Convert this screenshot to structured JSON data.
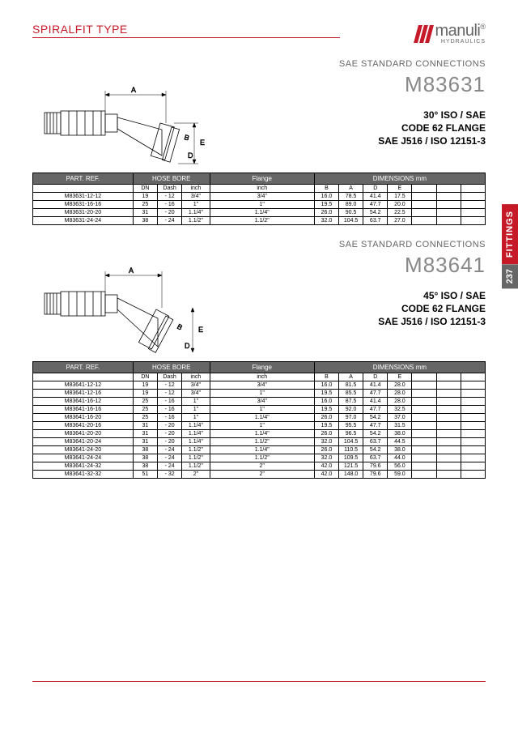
{
  "header": {
    "title": "SPIRALFIT TYPE",
    "logo_main": "manuli",
    "logo_sub": "HYDRAULICS"
  },
  "sidebar": {
    "label": "FITTINGS",
    "page": "237"
  },
  "section1": {
    "sae_conn": "SAE STANDARD CONNECTIONS",
    "code": "M83631",
    "desc1": "30° ISO / SAE",
    "desc2": "CODE 62 FLANGE",
    "desc3": "SAE J516 / ISO 12151-3",
    "table": {
      "headers": {
        "part_ref": "PART. REF.",
        "hose_bore": "HOSE BORE",
        "flange": "Flange",
        "dimensions": "DIMENSIONS mm"
      },
      "sub": {
        "dn": "DN",
        "dash": "Dash",
        "inch1": "inch",
        "inch2": "inch",
        "b": "B",
        "a": "A",
        "d": "D",
        "e": "E"
      },
      "rows": [
        {
          "ref": "M83631-12-12",
          "dn": "19",
          "dash": "- 12",
          "inch1": "3/4\"",
          "inch2": "3/4\"",
          "b": "16.0",
          "a": "78.5",
          "d": "41.4",
          "e": "17.5"
        },
        {
          "ref": "M83631-16-16",
          "dn": "25",
          "dash": "- 16",
          "inch1": "1\"",
          "inch2": "1\"",
          "b": "19.5",
          "a": "89.0",
          "d": "47.7",
          "e": "20.0"
        },
        {
          "ref": "M83631-20-20",
          "dn": "31",
          "dash": "- 20",
          "inch1": "1.1/4\"",
          "inch2": "1.1/4\"",
          "b": "26.0",
          "a": "90.5",
          "d": "54.2",
          "e": "22.5"
        },
        {
          "ref": "M83631-24-24",
          "dn": "38",
          "dash": "- 24",
          "inch1": "1.1/2\"",
          "inch2": "1.1/2\"",
          "b": "32.0",
          "a": "104.5",
          "d": "63.7",
          "e": "27.0"
        }
      ]
    }
  },
  "section2": {
    "sae_conn": "SAE STANDARD CONNECTIONS",
    "code": "M83641",
    "desc1": "45° ISO / SAE",
    "desc2": "CODE 62 FLANGE",
    "desc3": "SAE J516 / ISO 12151-3",
    "table": {
      "headers": {
        "part_ref": "PART. REF.",
        "hose_bore": "HOSE BORE",
        "flange": "Flange",
        "dimensions": "DIMENSIONS mm"
      },
      "sub": {
        "dn": "DN",
        "dash": "Dash",
        "inch1": "inch",
        "inch2": "inch",
        "b": "B",
        "a": "A",
        "d": "D",
        "e": "E"
      },
      "rows": [
        {
          "ref": "M83641-12-12",
          "dn": "19",
          "dash": "- 12",
          "inch1": "3/4\"",
          "inch2": "3/4\"",
          "b": "16.0",
          "a": "81.5",
          "d": "41.4",
          "e": "28.0"
        },
        {
          "ref": "M83641-12-16",
          "dn": "19",
          "dash": "- 12",
          "inch1": "3/4\"",
          "inch2": "1\"",
          "b": "19.5",
          "a": "85.5",
          "d": "47.7",
          "e": "28.0"
        },
        {
          "ref": "M83641-16-12",
          "dn": "25",
          "dash": "- 16",
          "inch1": "1\"",
          "inch2": "3/4\"",
          "b": "16.0",
          "a": "87.5",
          "d": "41.4",
          "e": "28.0"
        },
        {
          "ref": "M83641-16-16",
          "dn": "25",
          "dash": "- 16",
          "inch1": "1\"",
          "inch2": "1\"",
          "b": "19.5",
          "a": "92.0",
          "d": "47.7",
          "e": "32.5"
        },
        {
          "ref": "M83641-16-20",
          "dn": "25",
          "dash": "- 16",
          "inch1": "1\"",
          "inch2": "1.1/4\"",
          "b": "26.0",
          "a": "97.0",
          "d": "54.2",
          "e": "37.0"
        },
        {
          "ref": "M83641-20-16",
          "dn": "31",
          "dash": "- 20",
          "inch1": "1.1/4\"",
          "inch2": "1\"",
          "b": "19.5",
          "a": "95.5",
          "d": "47.7",
          "e": "31.5"
        },
        {
          "ref": "M83641-20-20",
          "dn": "31",
          "dash": "- 20",
          "inch1": "1.1/4\"",
          "inch2": "1.1/4\"",
          "b": "26.0",
          "a": "96.5",
          "d": "54.2",
          "e": "38.0"
        },
        {
          "ref": "M83641-20-24",
          "dn": "31",
          "dash": "- 20",
          "inch1": "1.1/4\"",
          "inch2": "1.1/2\"",
          "b": "32.0",
          "a": "104.5",
          "d": "63.7",
          "e": "44.5"
        },
        {
          "ref": "M83641-24-20",
          "dn": "38",
          "dash": "- 24",
          "inch1": "1.1/2\"",
          "inch2": "1.1/4\"",
          "b": "26.0",
          "a": "110.5",
          "d": "54.2",
          "e": "38.0"
        },
        {
          "ref": "M83641-24-24",
          "dn": "38",
          "dash": "- 24",
          "inch1": "1.1/2\"",
          "inch2": "1.1/2\"",
          "b": "32.0",
          "a": "109.5",
          "d": "63.7",
          "e": "44.0"
        },
        {
          "ref": "M83641-24-32",
          "dn": "38",
          "dash": "- 24",
          "inch1": "1.1/2\"",
          "inch2": "2\"",
          "b": "42.0",
          "a": "121.5",
          "d": "79.6",
          "e": "56.0"
        },
        {
          "ref": "M83641-32-32",
          "dn": "51",
          "dash": "- 32",
          "inch1": "2\"",
          "inch2": "2\"",
          "b": "42.0",
          "a": "148.0",
          "d": "79.6",
          "e": "59.0"
        }
      ]
    }
  },
  "colors": {
    "accent": "#c71a29",
    "grey": "#666666"
  }
}
